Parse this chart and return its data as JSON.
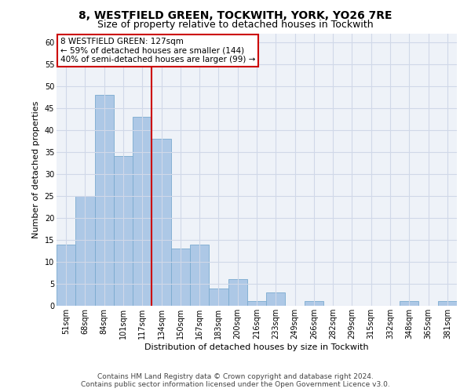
{
  "title": "8, WESTFIELD GREEN, TOCKWITH, YORK, YO26 7RE",
  "subtitle": "Size of property relative to detached houses in Tockwith",
  "xlabel": "Distribution of detached houses by size in Tockwith",
  "ylabel": "Number of detached properties",
  "categories": [
    "51sqm",
    "68sqm",
    "84sqm",
    "101sqm",
    "117sqm",
    "134sqm",
    "150sqm",
    "167sqm",
    "183sqm",
    "200sqm",
    "216sqm",
    "233sqm",
    "249sqm",
    "266sqm",
    "282sqm",
    "299sqm",
    "315sqm",
    "332sqm",
    "348sqm",
    "365sqm",
    "381sqm"
  ],
  "values": [
    14,
    25,
    48,
    34,
    43,
    38,
    13,
    14,
    4,
    6,
    1,
    3,
    0,
    1,
    0,
    0,
    0,
    0,
    1,
    0,
    1
  ],
  "bar_color": "#adc8e6",
  "bar_edge_color": "#7aaacf",
  "vline_color": "#cc0000",
  "vline_x_index": 4,
  "annotation_lines": [
    "8 WESTFIELD GREEN: 127sqm",
    "← 59% of detached houses are smaller (144)",
    "40% of semi-detached houses are larger (99) →"
  ],
  "annotation_box_color": "#ffffff",
  "annotation_box_edge": "#cc0000",
  "ylim": [
    0,
    62
  ],
  "yticks": [
    0,
    5,
    10,
    15,
    20,
    25,
    30,
    35,
    40,
    45,
    50,
    55,
    60
  ],
  "grid_color": "#d0d8e8",
  "background_color": "#eef2f8",
  "footer_lines": [
    "Contains HM Land Registry data © Crown copyright and database right 2024.",
    "Contains public sector information licensed under the Open Government Licence v3.0."
  ],
  "title_fontsize": 10,
  "subtitle_fontsize": 9,
  "axis_label_fontsize": 8,
  "tick_fontsize": 7,
  "annotation_fontsize": 7.5,
  "footer_fontsize": 6.5
}
